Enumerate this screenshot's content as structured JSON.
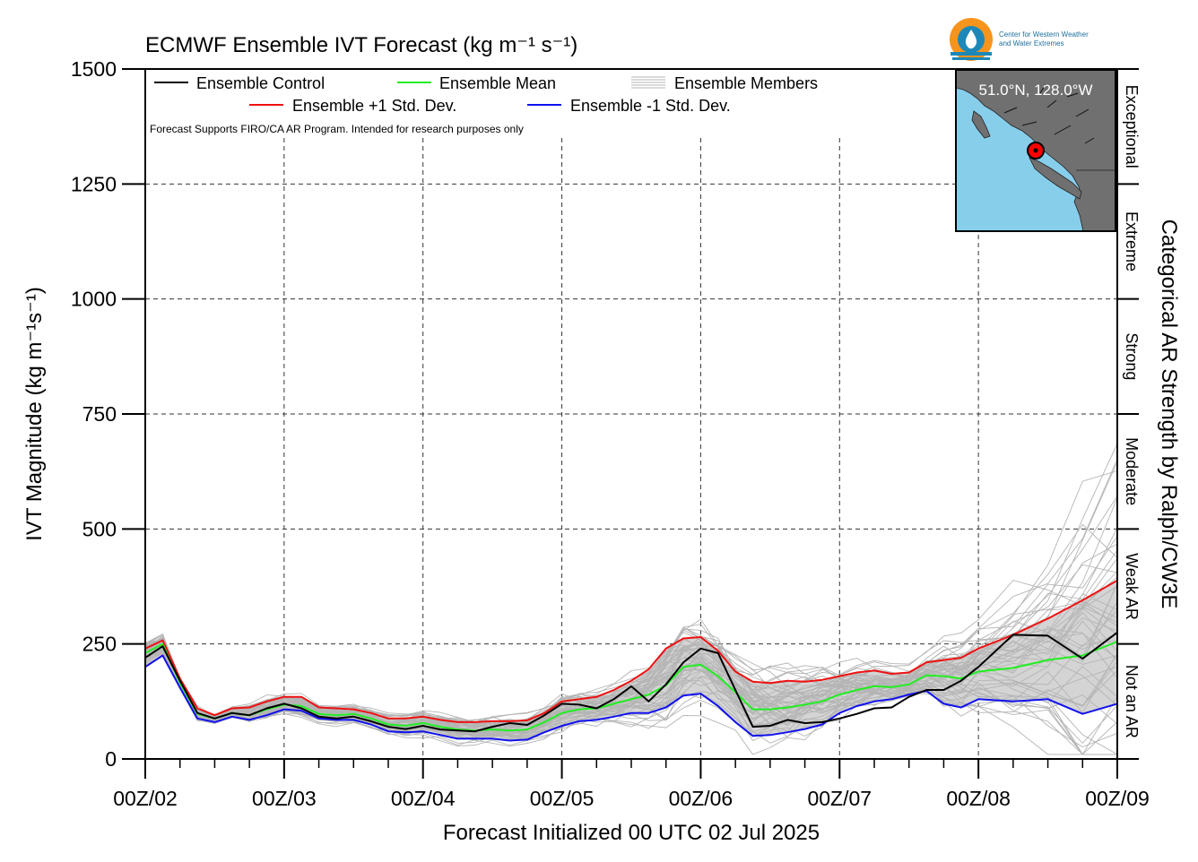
{
  "chart_data": {
    "type": "line",
    "title": "ECMWF Ensemble IVT Forecast (kg m⁻¹ s⁻¹)",
    "xlabel": "Forecast Initialized 00 UTC 02 Jul 2025",
    "ylabel": "IVT Magnitude (kg m⁻¹s⁻¹)",
    "right_label": "Categorical AR Strength by Ralph/CW3E",
    "note": "Forecast Supports FIRO/CA AR Program. Intended for research purposes only",
    "ylim": [
      0,
      1500
    ],
    "xlim_hours": [
      0,
      168
    ],
    "y_ticks": [
      0,
      250,
      500,
      750,
      1000,
      1250,
      1500
    ],
    "x_ticks": [
      {
        "hour": 0,
        "label": "00Z/02"
      },
      {
        "hour": 24,
        "label": "00Z/03"
      },
      {
        "hour": 48,
        "label": "00Z/04"
      },
      {
        "hour": 72,
        "label": "00Z/05"
      },
      {
        "hour": 96,
        "label": "00Z/06"
      },
      {
        "hour": 120,
        "label": "00Z/07"
      },
      {
        "hour": 144,
        "label": "00Z/08"
      },
      {
        "hour": 168,
        "label": "00Z/09"
      }
    ],
    "grid": true,
    "legend_position": "top-left",
    "categories_ar": [
      {
        "label": "Not an AR",
        "range": [
          0,
          250
        ]
      },
      {
        "label": "Weak AR",
        "range": [
          250,
          500
        ]
      },
      {
        "label": "Moderate",
        "range": [
          500,
          750
        ]
      },
      {
        "label": "Strong",
        "range": [
          750,
          1000
        ]
      },
      {
        "label": "Extreme",
        "range": [
          1000,
          1250
        ]
      },
      {
        "label": "Exceptional",
        "range": [
          1250,
          1500
        ]
      }
    ],
    "x_hours": [
      0,
      3,
      6,
      9,
      12,
      15,
      18,
      21,
      24,
      27,
      30,
      33,
      36,
      39,
      42,
      45,
      48,
      51,
      54,
      57,
      60,
      63,
      66,
      69,
      72,
      75,
      78,
      81,
      84,
      87,
      90,
      93,
      96,
      99,
      102,
      105,
      108,
      111,
      114,
      117,
      120,
      123,
      126,
      129,
      132,
      135,
      138,
      141,
      144,
      150,
      156,
      162,
      168
    ],
    "series": [
      {
        "name": "Ensemble Control",
        "color": "#000000",
        "values": [
          220,
          245,
          170,
          100,
          88,
          100,
          95,
          110,
          120,
          110,
          92,
          88,
          92,
          82,
          70,
          65,
          72,
          64,
          62,
          60,
          70,
          78,
          74,
          95,
          120,
          118,
          110,
          130,
          158,
          125,
          162,
          210,
          240,
          230,
          150,
          70,
          72,
          85,
          78,
          80,
          88,
          98,
          110,
          112,
          135,
          150,
          150,
          170,
          200,
          270,
          268,
          218,
          275
        ]
      },
      {
        "name": "Ensemble Mean",
        "color": "#22ee22",
        "values": [
          230,
          250,
          165,
          98,
          88,
          100,
          95,
          108,
          118,
          115,
          98,
          95,
          98,
          88,
          75,
          72,
          78,
          70,
          64,
          62,
          64,
          62,
          64,
          80,
          100,
          108,
          110,
          120,
          130,
          140,
          160,
          200,
          205,
          180,
          145,
          108,
          108,
          112,
          118,
          125,
          140,
          150,
          158,
          156,
          162,
          182,
          180,
          175,
          190,
          198,
          215,
          225,
          255
        ]
      },
      {
        "name": "Ensemble +1 Std. Dev.",
        "color": "#ee1111",
        "values": [
          240,
          258,
          175,
          110,
          95,
          110,
          112,
          125,
          135,
          135,
          112,
          110,
          108,
          100,
          88,
          88,
          92,
          85,
          80,
          80,
          82,
          82,
          84,
          100,
          125,
          130,
          135,
          150,
          170,
          195,
          240,
          262,
          265,
          235,
          190,
          168,
          165,
          170,
          168,
          172,
          180,
          188,
          192,
          185,
          188,
          210,
          215,
          220,
          240,
          270,
          305,
          345,
          388
        ]
      },
      {
        "name": "Ensemble -1 Std. Dev.",
        "color": "#1111ee",
        "values": [
          200,
          225,
          155,
          88,
          80,
          92,
          85,
          95,
          108,
          105,
          88,
          85,
          85,
          75,
          60,
          58,
          60,
          52,
          44,
          44,
          44,
          40,
          42,
          58,
          72,
          82,
          85,
          92,
          100,
          100,
          112,
          138,
          142,
          115,
          80,
          50,
          52,
          58,
          65,
          75,
          100,
          115,
          125,
          130,
          140,
          148,
          120,
          112,
          130,
          125,
          130,
          98,
          120
        ]
      }
    ],
    "members": {
      "name": "Ensemble Members",
      "color": "#b4b4b4",
      "count": 50
    },
    "spread_fill_color": "#d4d4d4"
  },
  "inset_map": {
    "location": "51.0°N, 128.0°W",
    "ocean_color": "#87ceeb",
    "land_color": "#707070",
    "marker_color": "#ff0000"
  },
  "logo": {
    "line1": "Center for Western Weather",
    "line2": "and Water Extremes",
    "ring_color": "#f7941d",
    "drop_color": "#1d88b8"
  }
}
